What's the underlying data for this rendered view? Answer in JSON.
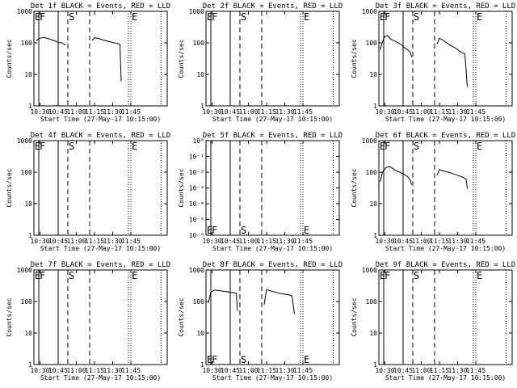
{
  "chart_data": [
    {
      "type": "line",
      "title": "Det 1f BLACK = Events, RED = LLD",
      "xlabel": "Start Time (27-May-17 10:15:00)",
      "ylabel": "Counts/sec",
      "y_scale": "log",
      "y_ticks": [
        "1",
        "10",
        "100",
        "1000"
      ],
      "x_ticks": [
        "10:30",
        "10:45",
        "11:00",
        "11:15",
        "11:30",
        "11:45"
      ],
      "xlim_minutes": [
        10,
        120
      ],
      "y_tick_values": [
        1,
        10,
        100,
        1000
      ],
      "marker_labels": [
        "E",
        "F",
        "S",
        "E"
      ],
      "series": [
        {
          "values": [
            [
              12,
              120
            ],
            [
              15,
              140
            ],
            [
              18,
              150
            ],
            [
              22,
              135
            ],
            [
              26,
              120
            ],
            [
              30,
              105
            ],
            [
              33,
              100
            ],
            [
              35,
              90
            ],
            [
              36,
              85
            ]
          ]
        },
        {
          "values": [
            [
              58,
              120
            ],
            [
              60,
              145
            ],
            [
              64,
              135
            ],
            [
              68,
              120
            ],
            [
              72,
              110
            ],
            [
              76,
              100
            ],
            [
              79,
              95
            ],
            [
              81,
              90
            ],
            [
              82,
              6
            ]
          ]
        }
      ]
    },
    {
      "type": "line",
      "title": "Det 2f BLACK = Events, RED = LLD",
      "xlabel": "Start Time (27-May-17 10:15:00)",
      "ylabel": "Counts/sec",
      "y_scale": "log",
      "y_ticks": [
        "1",
        "10",
        "100",
        "1000"
      ],
      "x_ticks": [
        "10:30",
        "10:45",
        "11:00",
        "11:15",
        "11:30",
        "11:45"
      ],
      "xlim_minutes": [
        10,
        120
      ],
      "y_tick_values": [
        1,
        10,
        100,
        1000
      ],
      "marker_labels": [
        "E",
        "F",
        "S",
        "E"
      ],
      "series": []
    },
    {
      "type": "line",
      "title": "Det 3f BLACK = Events, RED = LLD",
      "xlabel": "Start Time (27-May-17 10:15:00)",
      "ylabel": "Counts/sec",
      "y_scale": "log",
      "y_ticks": [
        "1",
        "10",
        "100",
        "1000"
      ],
      "x_ticks": [
        "10:30",
        "10:45",
        "11:00",
        "11:15",
        "11:30",
        "11:45"
      ],
      "xlim_minutes": [
        10,
        120
      ],
      "y_tick_values": [
        1,
        10,
        100,
        1000
      ],
      "marker_labels": [
        "E",
        "F",
        "S",
        "E"
      ],
      "series": [
        {
          "values": [
            [
              11,
              60
            ],
            [
              13,
              110
            ],
            [
              15,
              160
            ],
            [
              17,
              170
            ],
            [
              20,
              130
            ],
            [
              24,
              110
            ],
            [
              28,
              90
            ],
            [
              31,
              70
            ],
            [
              34,
              60
            ],
            [
              36,
              50
            ],
            [
              37,
              35
            ]
          ]
        },
        {
          "values": [
            [
              58,
              90
            ],
            [
              60,
              140
            ],
            [
              63,
              120
            ],
            [
              66,
              100
            ],
            [
              70,
              80
            ],
            [
              74,
              65
            ],
            [
              78,
              50
            ],
            [
              81,
              45
            ],
            [
              83,
              4
            ]
          ]
        }
      ]
    },
    {
      "type": "line",
      "title": "Det 4f BLACK = Events, RED = LLD",
      "xlabel": "Start Time (27-May-17 10:15:00)",
      "ylabel": "Counts/sec",
      "y_scale": "log",
      "y_ticks": [
        "1",
        "10",
        "100",
        "1000"
      ],
      "x_ticks": [
        "10:30",
        "10:45",
        "11:00",
        "11:15",
        "11:30",
        "11:45"
      ],
      "xlim_minutes": [
        10,
        120
      ],
      "y_tick_values": [
        1,
        10,
        100,
        1000
      ],
      "marker_labels": [
        "E",
        "F",
        "S",
        "E"
      ],
      "series": []
    },
    {
      "type": "line",
      "title": "Det 5f BLACK = Events, RED = LLD",
      "xlabel": "Start Time (27-May-17 10:15:00)",
      "ylabel": "Counts/sec",
      "y_scale": "log",
      "y_ticks": [
        "10⁰",
        "10⁻¹",
        "10⁻²",
        "10⁻³",
        "10⁻⁴",
        "10⁻⁵",
        "10⁻⁶"
      ],
      "x_ticks": [
        "10:30",
        "10:45",
        "11:00",
        "11:15",
        "11:30",
        "11:45"
      ],
      "xlim_minutes": [
        10,
        120
      ],
      "y_tick_values": [
        1,
        0.1,
        0.01,
        0.001,
        0.0001,
        1e-05,
        1e-06
      ],
      "marker_labels": [
        "E",
        "F",
        "S",
        "E"
      ],
      "series": []
    },
    {
      "type": "line",
      "title": "Det 6f BLACK = Events, RED = LLD",
      "xlabel": "Start Time (27-May-17 10:15:00)",
      "ylabel": "Counts/sec",
      "y_scale": "log",
      "y_ticks": [
        "1",
        "10",
        "100",
        "1000"
      ],
      "x_ticks": [
        "10:30",
        "10:45",
        "11:00",
        "11:15",
        "11:30",
        "11:45"
      ],
      "xlim_minutes": [
        10,
        120
      ],
      "y_tick_values": [
        1,
        10,
        100,
        1000
      ],
      "marker_labels": [
        "E",
        "F",
        "S",
        "E"
      ],
      "series": [
        {
          "values": [
            [
              11,
              50
            ],
            [
              13,
              100
            ],
            [
              16,
              140
            ],
            [
              19,
              150
            ],
            [
              23,
              120
            ],
            [
              27,
              100
            ],
            [
              31,
              85
            ],
            [
              34,
              70
            ],
            [
              36,
              55
            ],
            [
              37,
              40
            ]
          ]
        },
        {
          "values": [
            [
              58,
              80
            ],
            [
              60,
              120
            ],
            [
              63,
              110
            ],
            [
              67,
              100
            ],
            [
              71,
              90
            ],
            [
              75,
              80
            ],
            [
              79,
              70
            ],
            [
              82,
              60
            ],
            [
              83,
              30
            ]
          ]
        }
      ]
    },
    {
      "type": "line",
      "title": "Det 7f BLACK = Events, RED = LLD",
      "xlabel": "Start Time (27-May-17 10:15:00)",
      "ylabel": "Counts/sec",
      "y_scale": "log",
      "y_ticks": [
        "1",
        "10",
        "100",
        "1000"
      ],
      "x_ticks": [
        "10:30",
        "10:45",
        "11:00",
        "11:15",
        "11:30",
        "11:45"
      ],
      "xlim_minutes": [
        10,
        120
      ],
      "y_tick_values": [
        1,
        10,
        100,
        1000
      ],
      "marker_labels": [
        "E",
        "F",
        "S",
        "E"
      ],
      "series": []
    },
    {
      "type": "line",
      "title": "Det 8f BLACK = Events, RED = LLD",
      "xlabel": "Start Time (27-May-17 10:15:00)",
      "ylabel": "Counts/sec",
      "y_scale": "log",
      "y_ticks": [
        "1",
        "10",
        "100",
        "1000"
      ],
      "x_ticks": [
        "10:30",
        "10:45",
        "11:00",
        "11:15",
        "11:30",
        "11:45"
      ],
      "xlim_minutes": [
        10,
        120
      ],
      "y_tick_values": [
        1,
        10,
        100,
        1000
      ],
      "marker_labels": [
        "E",
        "F",
        "S",
        "E"
      ],
      "series": [
        {
          "values": [
            [
              12,
              90
            ],
            [
              14,
              200
            ],
            [
              17,
              230
            ],
            [
              21,
              220
            ],
            [
              25,
              210
            ],
            [
              29,
              200
            ],
            [
              33,
              190
            ],
            [
              35,
              180
            ],
            [
              36,
              50
            ]
          ]
        },
        {
          "values": [
            [
              58,
              80
            ],
            [
              60,
              240
            ],
            [
              63,
              220
            ],
            [
              67,
              200
            ],
            [
              71,
              180
            ],
            [
              75,
              170
            ],
            [
              79,
              160
            ],
            [
              81,
              150
            ],
            [
              83,
              40
            ]
          ]
        }
      ]
    },
    {
      "type": "line",
      "title": "Det 9f BLACK = Events, RED = LLD",
      "xlabel": "Start Time (27-May-17 10:15:00)",
      "ylabel": "Counts/sec",
      "y_scale": "log",
      "y_ticks": [
        "1",
        "10",
        "100",
        "1000"
      ],
      "x_ticks": [
        "10:30",
        "10:45",
        "11:00",
        "11:15",
        "11:30",
        "11:45"
      ],
      "xlim_minutes": [
        10,
        120
      ],
      "y_tick_values": [
        1,
        10,
        100,
        1000
      ],
      "marker_labels": [
        "E",
        "F",
        "S",
        "E"
      ],
      "series": []
    }
  ],
  "markers": [
    {
      "label": "E",
      "x": 10,
      "style": "dotted"
    },
    {
      "label": "F",
      "x": 14,
      "style": "solid"
    },
    {
      "label": "F",
      "x": 30,
      "style": "solid"
    },
    {
      "label": "S",
      "x": 38,
      "style": "dashed"
    },
    {
      "label": "",
      "x": 56,
      "style": "dashed"
    },
    {
      "label": "",
      "x": 88,
      "style": "dotted"
    },
    {
      "label": "E",
      "x": 90,
      "style": "dotted"
    },
    {
      "label": "",
      "x": 115,
      "style": "dotted"
    }
  ]
}
